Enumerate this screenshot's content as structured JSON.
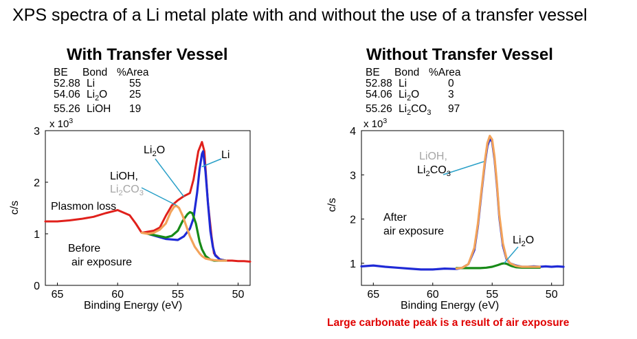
{
  "page_title": "XPS spectra of a Li metal plate with and without the use of a transfer vessel",
  "footnote": "Large carbonate peak is a result of air exposure",
  "colors": {
    "total": "#e0201b",
    "li_metal": "#1f2ad6",
    "li2o": "#178a17",
    "carbonate": "#f3a35a",
    "background": "#1f2ad6",
    "note": "#e00000",
    "grey_label": "#a6a6a6"
  },
  "panels": {
    "with": {
      "title": "With Transfer Vessel",
      "table_header": {
        "be": "BE",
        "bond": "Bond",
        "area": "%Area"
      },
      "rows": [
        {
          "be": "52.88",
          "bond_main": "Li",
          "bond_sub": "",
          "bond_tail": "",
          "bond_sub2": "",
          "area": "55"
        },
        {
          "be": "54.06",
          "bond_main": "Li",
          "bond_sub": "2",
          "bond_tail": "O",
          "bond_sub2": "",
          "area": "25"
        },
        {
          "be": "55.26",
          "bond_main": "LiOH",
          "bond_sub": "",
          "bond_tail": "",
          "bond_sub2": "",
          "area": "19"
        }
      ],
      "scale_prefix": "x 10",
      "scale_exp": "3",
      "ylabel": "c/s",
      "xlabel": "Binding Energy (eV)",
      "ann_plasmon": "Plasmon loss",
      "ann_lioh": "LiOH,",
      "ann_carb_main": "Li",
      "ann_carb_sub": "2",
      "ann_carb_tail": "CO",
      "ann_carb_sub2": "3",
      "ann_li2o_main": "Li",
      "ann_li2o_sub": "2",
      "ann_li2o_tail": "O",
      "ann_li": "Li",
      "ann_before_1": "Before",
      "ann_before_2": "air exposure"
    },
    "without": {
      "title": "Without Transfer Vessel",
      "table_header": {
        "be": "BE",
        "bond": "Bond",
        "area": "%Area"
      },
      "rows": [
        {
          "be": "52.88",
          "bond_main": "Li",
          "bond_sub": "",
          "bond_tail": "",
          "bond_sub2": "",
          "area": "0"
        },
        {
          "be": "54.06",
          "bond_main": "Li",
          "bond_sub": "2",
          "bond_tail": "O",
          "bond_sub2": "",
          "area": "3"
        },
        {
          "be": "55.26",
          "bond_main": "Li",
          "bond_sub": "2",
          "bond_tail": "CO",
          "bond_sub2": "3",
          "area": "97"
        }
      ],
      "scale_prefix": "x 10",
      "scale_exp": "3",
      "ylabel": "c/s",
      "xlabel": "Binding Energy (eV)",
      "ann_lioh": "LiOH,",
      "ann_carb_main": "Li",
      "ann_carb_sub": "2",
      "ann_carb_tail": "CO",
      "ann_carb_sub2": "3",
      "ann_li2o_main": "Li",
      "ann_li2o_sub": "2",
      "ann_li2o_tail": "O",
      "ann_after_1": "After",
      "ann_after_2": "air exposure"
    }
  },
  "chart_data": [
    {
      "type": "line",
      "title": "With Transfer Vessel",
      "xlabel": "Binding Energy (eV)",
      "ylabel": "c/s",
      "y_scale_label": "x 10^3",
      "xlim": [
        66,
        49
      ],
      "ylim": [
        0,
        3
      ],
      "xticks": [
        65,
        60,
        55,
        50
      ],
      "yticks": [
        0,
        1,
        2,
        3
      ],
      "series": [
        {
          "color": "#e0201b",
          "x": [
            66,
            65,
            64,
            63,
            62,
            61,
            60.5,
            60,
            59,
            58.5,
            58,
            57,
            56.5,
            56,
            55.5,
            55,
            54.5,
            54,
            53.7,
            53.3,
            53.0,
            52.8,
            52.5,
            52.2,
            52,
            51.5,
            51,
            50.5,
            50,
            49.5,
            49
          ],
          "y": [
            1.24,
            1.24,
            1.26,
            1.29,
            1.33,
            1.4,
            1.43,
            1.46,
            1.36,
            1.2,
            1.02,
            1.06,
            1.12,
            1.35,
            1.55,
            1.65,
            1.73,
            1.79,
            2.05,
            2.6,
            2.78,
            2.6,
            1.6,
            0.95,
            0.62,
            0.5,
            0.48,
            0.48,
            0.47,
            0.47,
            0.46
          ]
        },
        {
          "color": "#1f2ad6",
          "x": [
            57.5,
            56,
            55,
            54.5,
            54,
            53.7,
            53.4,
            53.2,
            53.0,
            52.9,
            52.7,
            52.5,
            52.3,
            52.1,
            51.9,
            51.5,
            51
          ],
          "y": [
            1.0,
            0.9,
            0.88,
            0.95,
            1.1,
            1.3,
            1.8,
            2.25,
            2.55,
            2.6,
            2.2,
            1.6,
            1.05,
            0.75,
            0.58,
            0.5,
            0.48
          ]
        },
        {
          "color": "#178a17",
          "x": [
            57.5,
            56,
            55.5,
            55,
            54.6,
            54.2,
            54.0,
            53.8,
            53.5,
            53.2,
            53.0,
            52.7,
            52.3,
            52,
            51.5,
            51
          ],
          "y": [
            1.0,
            0.93,
            0.96,
            1.06,
            1.25,
            1.38,
            1.42,
            1.4,
            1.2,
            0.85,
            0.7,
            0.57,
            0.5,
            0.48,
            0.48,
            0.48
          ]
        },
        {
          "color": "#f3a35a",
          "x": [
            58,
            57.5,
            57,
            56.5,
            56,
            55.6,
            55.3,
            55.1,
            54.9,
            54.6,
            54.3,
            54.0,
            53.6,
            53.2,
            53.0,
            52.7,
            52.3,
            52,
            51.5,
            51
          ],
          "y": [
            1.02,
            1.0,
            1.02,
            1.08,
            1.2,
            1.42,
            1.53,
            1.54,
            1.5,
            1.35,
            1.15,
            0.95,
            0.75,
            0.62,
            0.57,
            0.52,
            0.5,
            0.49,
            0.48,
            0.48
          ]
        }
      ]
    },
    {
      "type": "line",
      "title": "Without Transfer Vessel",
      "xlabel": "Binding Energy (eV)",
      "ylabel": "c/s",
      "y_scale_label": "x 10^3",
      "xlim": [
        66,
        49
      ],
      "ylim": [
        0.5,
        4
      ],
      "xticks": [
        65,
        60,
        55,
        50
      ],
      "yticks": [
        1,
        2,
        3,
        4
      ],
      "series": [
        {
          "color": "#1f2ad6",
          "x": [
            66,
            65,
            64,
            63,
            62,
            61,
            60,
            59,
            58,
            57.5,
            57,
            56.5,
            56.2,
            55.9,
            55.6,
            55.4,
            55.2,
            55.0,
            54.8,
            54.6,
            54.4,
            54.1,
            53.8,
            53.5,
            53,
            52.5,
            52,
            51.5,
            51,
            50.5,
            50,
            49.5,
            49
          ],
          "y": [
            0.93,
            0.95,
            0.92,
            0.9,
            0.88,
            0.86,
            0.86,
            0.88,
            0.87,
            0.9,
            0.98,
            1.3,
            1.85,
            2.6,
            3.3,
            3.65,
            3.82,
            3.75,
            3.35,
            2.75,
            2.05,
            1.4,
            1.1,
            1.0,
            0.95,
            0.92,
            0.92,
            0.93,
            0.92,
            0.93,
            0.92,
            0.93,
            0.92
          ]
        },
        {
          "color": "#178a17",
          "x": [
            58,
            57,
            56,
            55.5,
            55,
            54.5,
            54.2,
            54.0,
            53.8,
            53.4,
            53,
            52.5,
            52,
            51
          ],
          "y": [
            0.89,
            0.89,
            0.89,
            0.9,
            0.92,
            0.96,
            0.99,
            1.0,
            0.99,
            0.94,
            0.91,
            0.9,
            0.9,
            0.9
          ]
        },
        {
          "color": "#f3a35a",
          "x": [
            58,
            57.5,
            57,
            56.5,
            56.2,
            55.9,
            55.6,
            55.4,
            55.2,
            55.0,
            54.8,
            54.6,
            54.4,
            54.1,
            53.8,
            53.5,
            53,
            52.5,
            52,
            51
          ],
          "y": [
            0.88,
            0.9,
            0.98,
            1.35,
            1.9,
            2.65,
            3.35,
            3.72,
            3.88,
            3.8,
            3.4,
            2.8,
            2.1,
            1.45,
            1.12,
            1.0,
            0.94,
            0.92,
            0.92,
            0.92
          ]
        }
      ]
    }
  ]
}
